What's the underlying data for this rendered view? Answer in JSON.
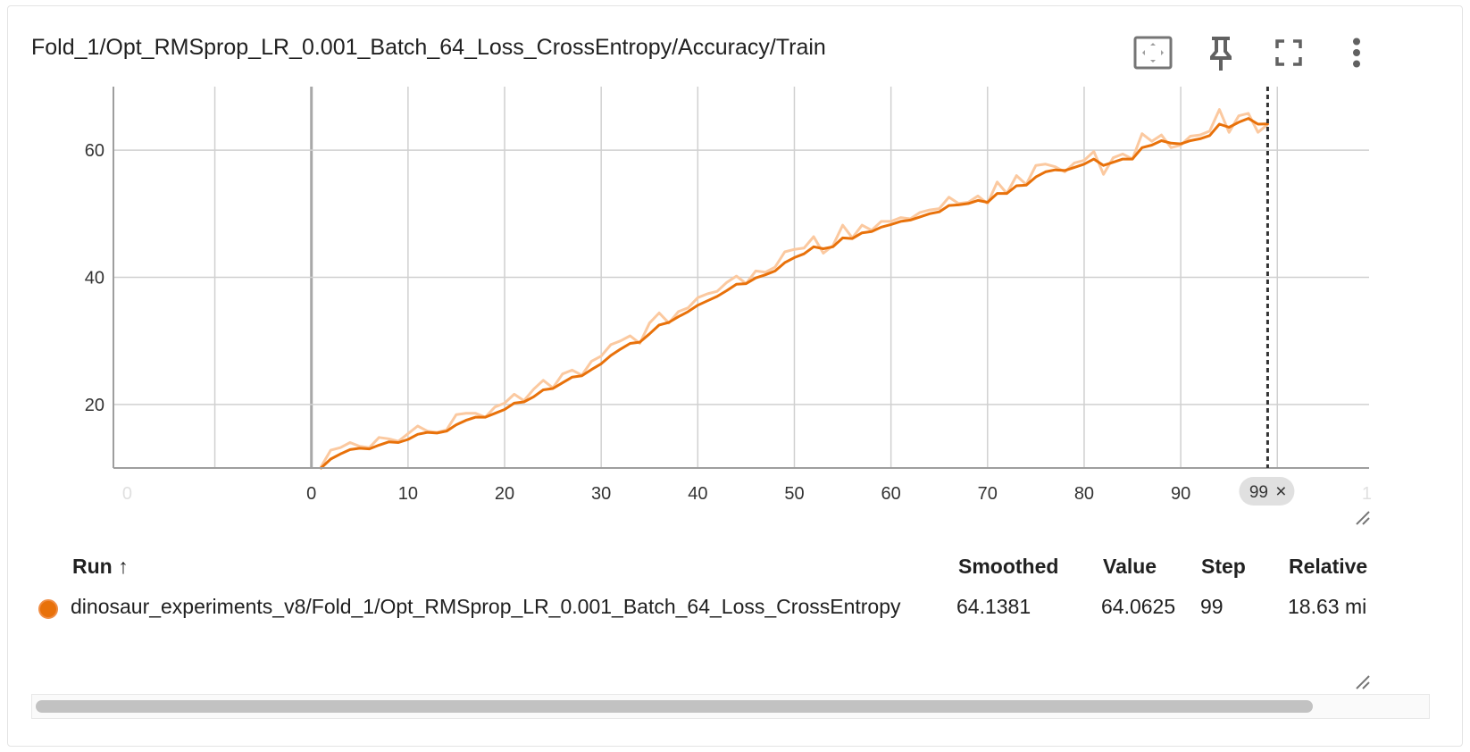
{
  "card": {
    "title": "Fold_1/Opt_RMSprop_LR_0.001_Batch_64_Loss_CrossEntropy/Accuracy/Train",
    "toolbar_icons": [
      "fit-domain-icon",
      "pin-icon",
      "fullscreen-icon",
      "more-vert-icon"
    ]
  },
  "colors": {
    "smoothed_line": "#e8710a",
    "raw_line": "#fbc9a0",
    "grid": "#d0d0d0",
    "axis": "#9e9e9e",
    "run_dot": "#e8710a",
    "cursor_line": "#333333"
  },
  "chart_data": {
    "type": "line",
    "x_ticks": [
      "0",
      "0",
      "10",
      "20",
      "30",
      "40",
      "50",
      "60",
      "70",
      "80",
      "90",
      "1"
    ],
    "y_ticks": [
      "20",
      "40",
      "60"
    ],
    "xlim": [
      -20.5,
      109.5
    ],
    "ylim": [
      10,
      70
    ],
    "cursor_step": "99",
    "cursor_close": "×",
    "series": [
      {
        "kind": "raw",
        "x": [
          1,
          2,
          3,
          4,
          5,
          6,
          7,
          8,
          9,
          10,
          11,
          12,
          13,
          14,
          15,
          16,
          17,
          18,
          19,
          20,
          21,
          22,
          23,
          24,
          25,
          26,
          27,
          28,
          29,
          30,
          31,
          32,
          33,
          34,
          35,
          36,
          37,
          38,
          39,
          40,
          41,
          42,
          43,
          44,
          45,
          46,
          47,
          48,
          49,
          50,
          51,
          52,
          53,
          54,
          55,
          56,
          57,
          58,
          59,
          60,
          61,
          62,
          63,
          64,
          65,
          66,
          67,
          68,
          69,
          70,
          71,
          72,
          73,
          74,
          75,
          76,
          77,
          78,
          79,
          80,
          81,
          82,
          83,
          84,
          85,
          86,
          87,
          88,
          89,
          90,
          91,
          92,
          93,
          94,
          95,
          96,
          97,
          98,
          99
        ],
        "values": [
          10.2,
          12.8,
          13.2,
          14.0,
          13.4,
          13.2,
          14.8,
          14.6,
          14.2,
          15.4,
          16.6,
          15.8,
          15.6,
          16.0,
          18.4,
          18.6,
          18.6,
          18.0,
          19.6,
          20.2,
          21.6,
          20.6,
          22.4,
          23.8,
          22.6,
          24.8,
          25.4,
          24.6,
          26.8,
          27.6,
          29.4,
          30.0,
          30.8,
          29.6,
          32.8,
          34.4,
          32.8,
          34.6,
          35.2,
          36.8,
          37.4,
          37.8,
          39.2,
          40.2,
          39.0,
          41.0,
          40.8,
          41.6,
          44.0,
          44.4,
          44.6,
          46.4,
          43.8,
          45.0,
          48.2,
          46.2,
          48.2,
          47.4,
          48.8,
          48.8,
          49.4,
          49.2,
          50.2,
          50.6,
          50.8,
          52.6,
          51.6,
          51.8,
          52.8,
          51.6,
          55.0,
          53.2,
          56.0,
          54.6,
          57.6,
          57.8,
          57.4,
          56.6,
          58.0,
          58.4,
          59.8,
          56.2,
          58.8,
          59.4,
          58.6,
          62.6,
          61.4,
          62.4,
          60.4,
          60.8,
          62.2,
          62.4,
          63.0,
          66.4,
          62.8,
          65.4,
          65.8,
          62.8,
          64.0625
        ]
      },
      {
        "kind": "smoothed",
        "x": [
          1,
          2,
          3,
          4,
          5,
          6,
          7,
          8,
          9,
          10,
          11,
          12,
          13,
          14,
          15,
          16,
          17,
          18,
          19,
          20,
          21,
          22,
          23,
          24,
          25,
          26,
          27,
          28,
          29,
          30,
          31,
          32,
          33,
          34,
          35,
          36,
          37,
          38,
          39,
          40,
          41,
          42,
          43,
          44,
          45,
          46,
          47,
          48,
          49,
          50,
          51,
          52,
          53,
          54,
          55,
          56,
          57,
          58,
          59,
          60,
          61,
          62,
          63,
          64,
          65,
          66,
          67,
          68,
          69,
          70,
          71,
          72,
          73,
          74,
          75,
          76,
          77,
          78,
          79,
          80,
          81,
          82,
          83,
          84,
          85,
          86,
          87,
          88,
          89,
          90,
          91,
          92,
          93,
          94,
          95,
          96,
          97,
          98,
          99
        ],
        "values": [
          10.0,
          11.4,
          12.2,
          12.9,
          13.1,
          13.0,
          13.6,
          14.1,
          14.0,
          14.5,
          15.3,
          15.6,
          15.5,
          15.8,
          16.8,
          17.5,
          18.0,
          18.0,
          18.6,
          19.2,
          20.2,
          20.4,
          21.2,
          22.3,
          22.5,
          23.4,
          24.3,
          24.5,
          25.5,
          26.4,
          27.7,
          28.7,
          29.6,
          29.8,
          31.1,
          32.5,
          32.9,
          33.8,
          34.6,
          35.6,
          36.3,
          37.0,
          37.9,
          38.9,
          39.0,
          39.9,
          40.4,
          41.0,
          42.3,
          43.1,
          43.7,
          44.8,
          44.5,
          44.8,
          46.2,
          46.1,
          47.0,
          47.2,
          47.9,
          48.3,
          48.8,
          49.0,
          49.5,
          50.0,
          50.3,
          51.3,
          51.4,
          51.6,
          52.1,
          51.8,
          53.2,
          53.2,
          54.4,
          54.5,
          55.8,
          56.6,
          56.9,
          56.8,
          57.3,
          57.8,
          58.6,
          57.6,
          58.1,
          58.6,
          58.6,
          60.4,
          60.8,
          61.5,
          61.1,
          61.0,
          61.5,
          61.8,
          62.3,
          64.1,
          63.6,
          64.4,
          65.0,
          64.1,
          64.1381
        ]
      }
    ]
  },
  "table": {
    "headers": {
      "run": "Run ↑",
      "smoothed": "Smoothed",
      "value": "Value",
      "step": "Step",
      "relative": "Relative"
    },
    "rows": [
      {
        "run": "dinosaur_experiments_v8/Fold_1/Opt_RMSprop_LR_0.001_Batch_64_Loss_CrossEntropy",
        "smoothed": "64.1381",
        "value": "64.0625",
        "step": "99",
        "relative": "18.63 mi"
      }
    ]
  }
}
